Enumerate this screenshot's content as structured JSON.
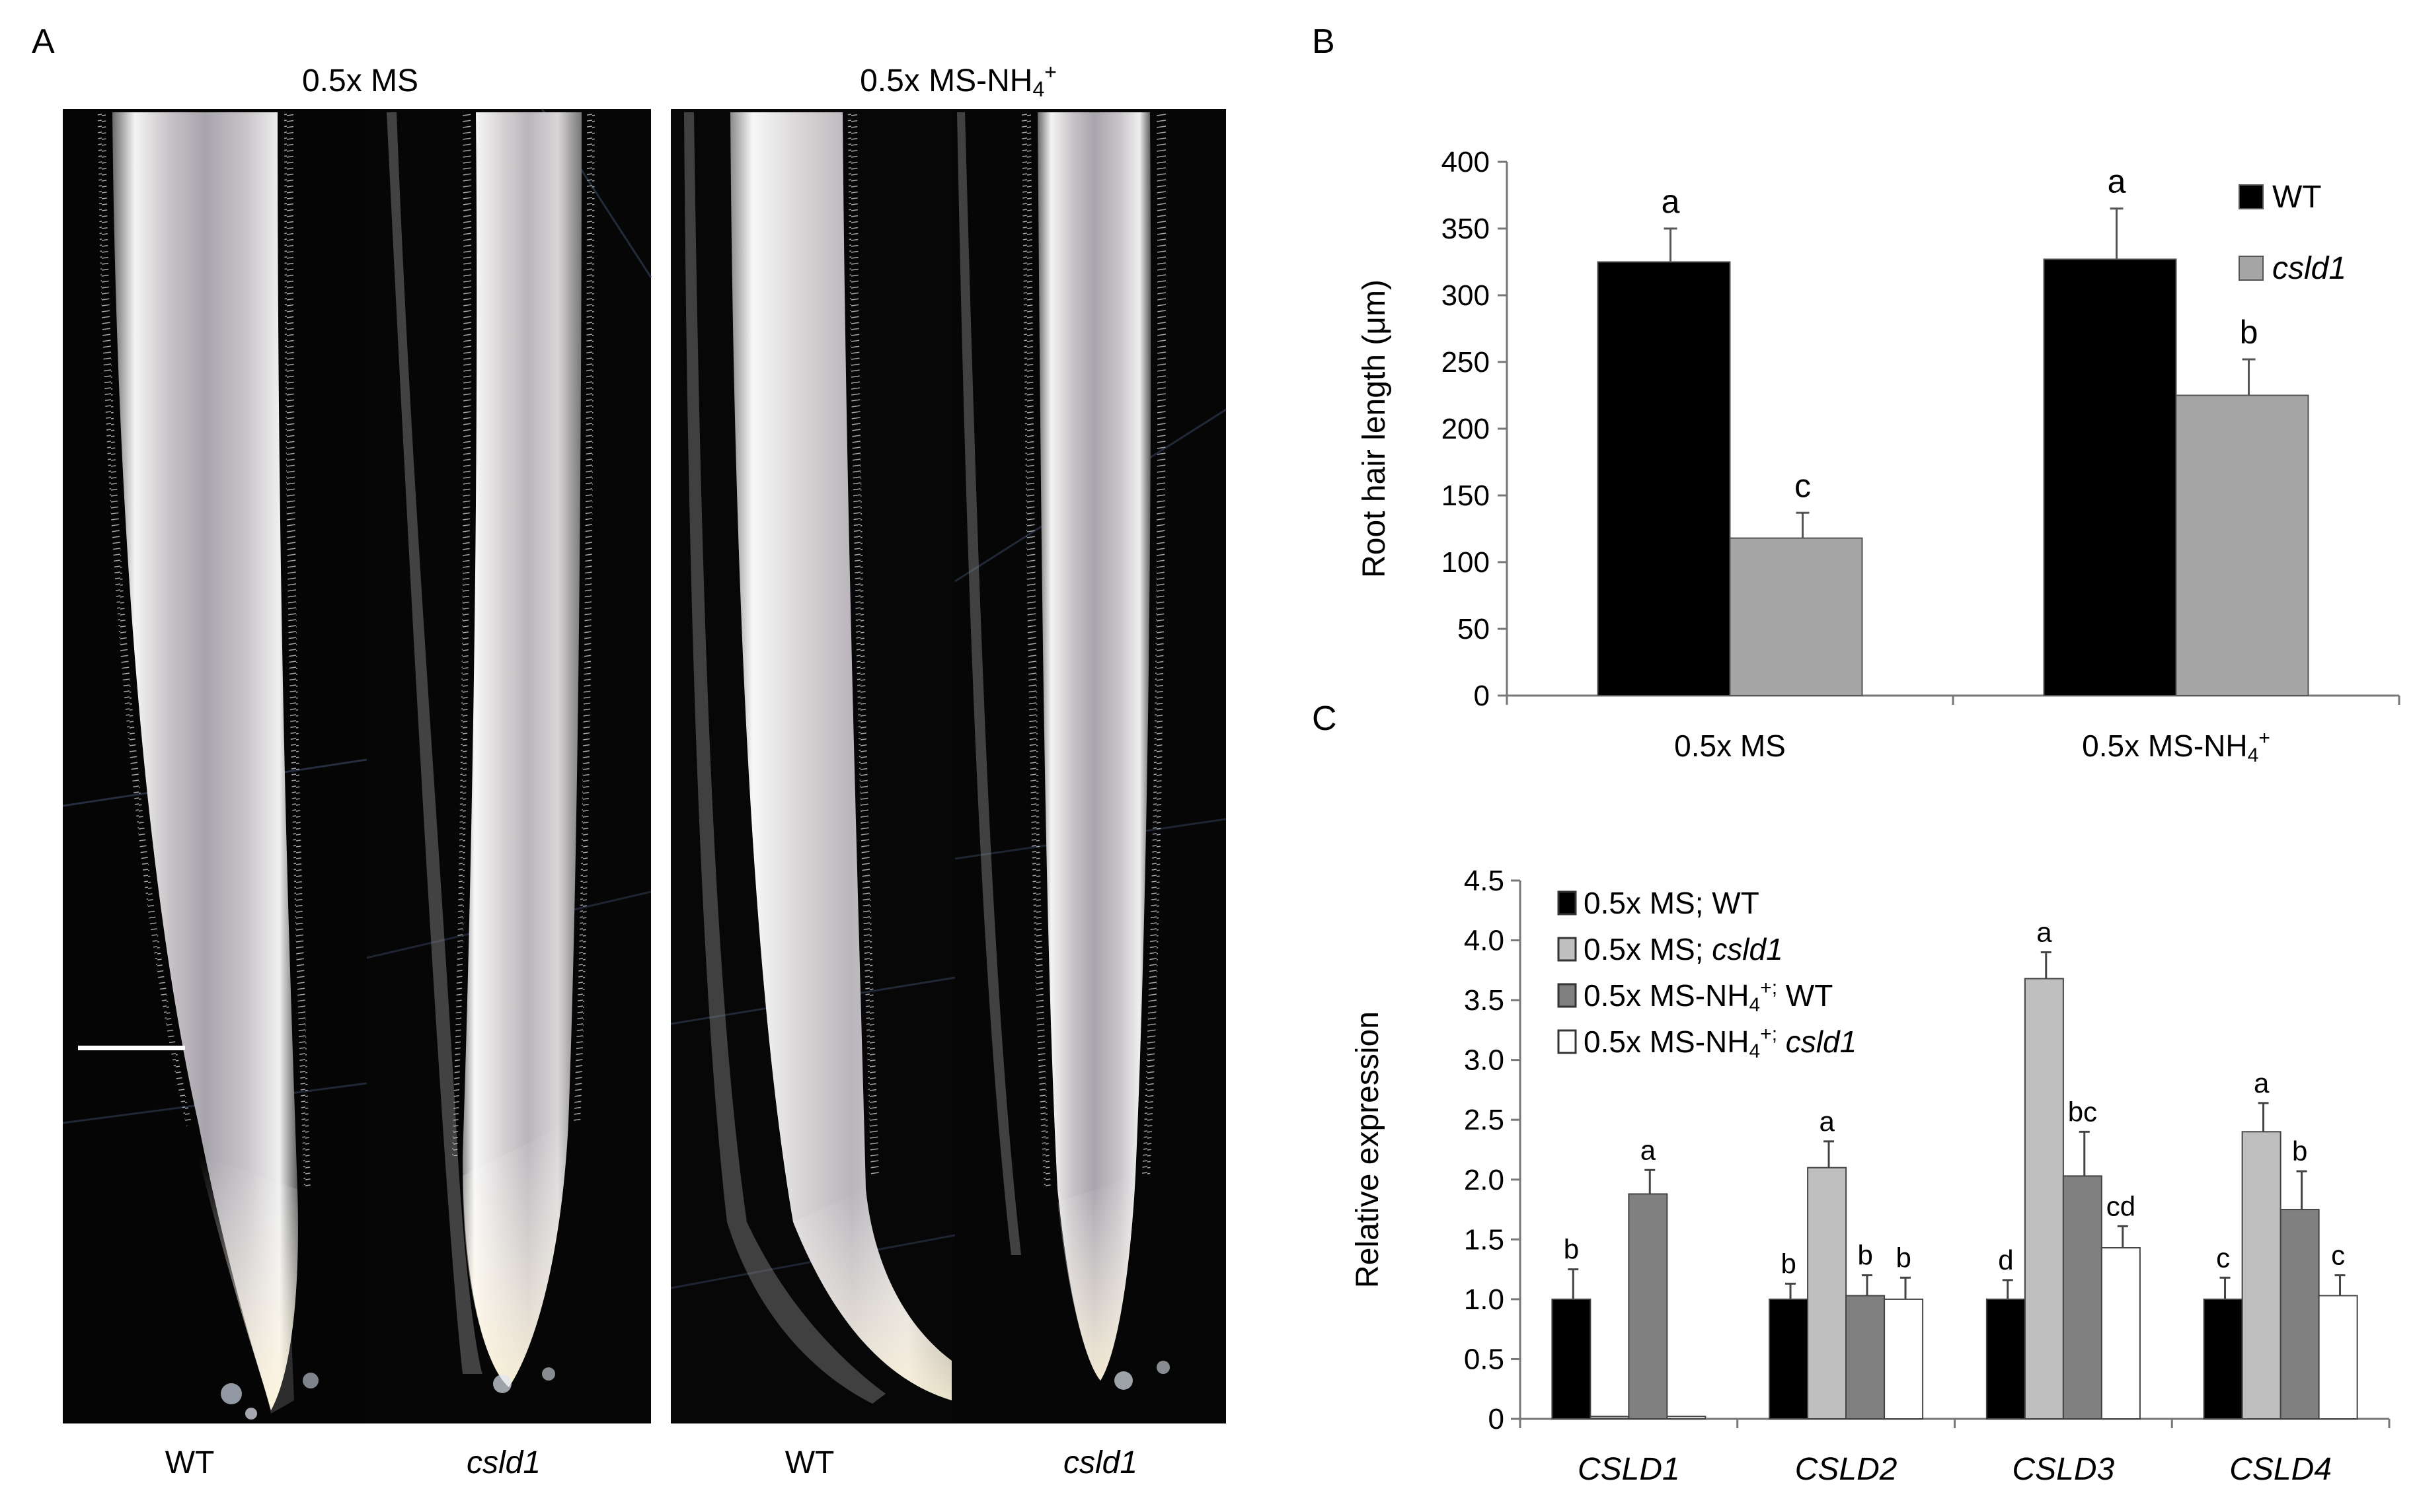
{
  "panel_a": {
    "label": "A",
    "conditions": [
      "0.5x MS",
      "0.5x MS-NH"
    ],
    "ion_sub": "4",
    "ion_sup": "+",
    "genotypes": [
      "WT",
      "csld1",
      "WT",
      "csld1"
    ]
  },
  "chart_data": [
    {
      "panel": "B",
      "type": "bar",
      "categories": [
        "0.5x MS",
        "0.5x MS-NH4+"
      ],
      "category_labels": [
        "0.5x MS",
        "0.5x MS-NH"
      ],
      "ion_sub": "4",
      "ion_sup": "+",
      "ylabel": "Root hair length (μm)",
      "ylim": [
        0,
        400
      ],
      "yticks": [
        0,
        50,
        100,
        150,
        200,
        250,
        300,
        350,
        400
      ],
      "grid": false,
      "legend_position": "top-right",
      "series": [
        {
          "name": "WT",
          "color": "#000000",
          "values": [
            325,
            327
          ],
          "errors": [
            25,
            38
          ],
          "letters": [
            "a",
            "a"
          ]
        },
        {
          "name": "csld1",
          "color": "#a6a6a6",
          "values": [
            118,
            225
          ],
          "errors": [
            19,
            27
          ],
          "letters": [
            "c",
            "b"
          ]
        }
      ]
    },
    {
      "panel": "C",
      "type": "bar",
      "categories": [
        "CSLD1",
        "CSLD2",
        "CSLD3",
        "CSLD4"
      ],
      "ylabel": "Relative expression",
      "ylim": [
        0,
        4.5
      ],
      "yticks": [
        "0",
        "0.5",
        "1.0",
        "1.5",
        "2.0",
        "2.5",
        "3.0",
        "3.5",
        "4.0",
        "4.5"
      ],
      "grid": false,
      "legend_position": "top-left",
      "series": [
        {
          "name": "0.5x MS; WT",
          "color": "#000000",
          "values": [
            1.0,
            1.0,
            1.0,
            1.0
          ],
          "errors": [
            0.25,
            0.13,
            0.16,
            0.18
          ],
          "letters": [
            "b",
            "b",
            "d",
            "c"
          ]
        },
        {
          "name": "0.5x MS; csld1",
          "color": "#bfbfbf",
          "values": [
            0.02,
            2.1,
            3.68,
            2.4
          ],
          "errors": [
            0.0,
            0.22,
            0.22,
            0.24
          ],
          "letters": [
            "",
            "a",
            "a",
            "a"
          ]
        },
        {
          "name": "0.5x MS-NH4+; WT",
          "color": "#808080",
          "values": [
            1.88,
            1.03,
            2.03,
            1.75
          ],
          "errors": [
            0.2,
            0.17,
            0.37,
            0.32
          ],
          "letters": [
            "a",
            "b",
            "bc",
            "b"
          ]
        },
        {
          "name": "0.5x MS-NH4+; csld1",
          "color": "#ffffff",
          "values": [
            0.02,
            1.0,
            1.43,
            1.03
          ],
          "errors": [
            0.0,
            0.18,
            0.18,
            0.17
          ],
          "letters": [
            "",
            "b",
            "cd",
            "c"
          ]
        }
      ],
      "legend_parts": [
        {
          "prefix": "0.5x MS; ",
          "suffix": "WT",
          "ion": false
        },
        {
          "prefix": "0.5x MS; ",
          "suffix": "csld1",
          "ion": false
        },
        {
          "prefix": "0.5x MS-NH",
          "suffix": " WT",
          "ion": true
        },
        {
          "prefix": "0.5x MS-NH",
          "suffix": "csld1",
          "ion": true
        }
      ]
    }
  ]
}
